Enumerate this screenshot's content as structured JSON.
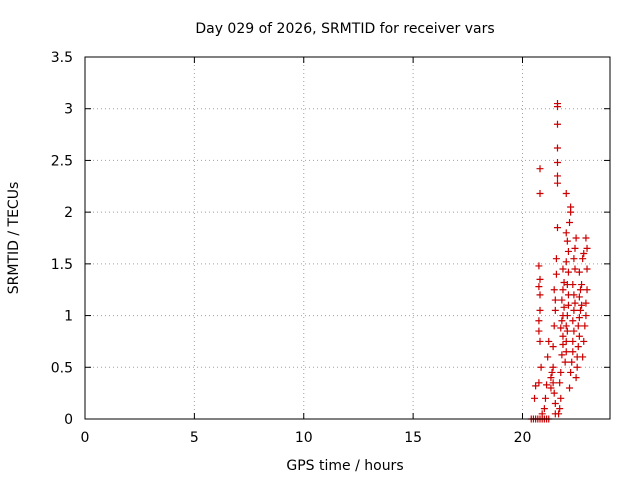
{
  "chart_data": {
    "type": "scatter",
    "title": "Day 029 of 2026, SRMTID for receiver vars",
    "xlabel": "GPS time / hours",
    "ylabel": "SRMTID / TECUs",
    "xlim": [
      0,
      24
    ],
    "ylim": [
      0,
      3.5
    ],
    "grid": true,
    "xticks": [
      0,
      5,
      10,
      15,
      20
    ],
    "xtick_labels": [
      "0",
      "5",
      "10",
      "15",
      "20"
    ],
    "yticks": [
      0,
      0.5,
      1,
      1.5,
      2,
      2.5,
      3,
      3.5
    ],
    "ytick_labels": [
      "0",
      "0.5",
      "1",
      "1.5",
      "2",
      "2.5",
      "3",
      "3.5"
    ],
    "marker": "plus",
    "series": [
      {
        "name": "SRMTID",
        "color": "#cc0000",
        "points": [
          [
            20.4,
            0.0
          ],
          [
            20.5,
            0.0
          ],
          [
            20.6,
            0.0
          ],
          [
            20.7,
            0.0
          ],
          [
            20.8,
            0.0
          ],
          [
            20.9,
            0.0
          ],
          [
            21.0,
            0.0
          ],
          [
            21.1,
            0.0
          ],
          [
            21.2,
            0.0
          ],
          [
            20.55,
            0.2
          ],
          [
            20.6,
            0.32
          ],
          [
            20.75,
            0.35
          ],
          [
            20.85,
            0.5
          ],
          [
            20.8,
            0.75
          ],
          [
            20.75,
            0.85
          ],
          [
            20.75,
            0.95
          ],
          [
            20.8,
            1.05
          ],
          [
            20.8,
            1.2
          ],
          [
            20.75,
            1.28
          ],
          [
            20.8,
            1.35
          ],
          [
            20.75,
            1.48
          ],
          [
            20.8,
            2.18
          ],
          [
            20.8,
            2.42
          ],
          [
            20.9,
            0.05
          ],
          [
            21.0,
            0.1
          ],
          [
            21.05,
            0.2
          ],
          [
            21.1,
            0.33
          ],
          [
            21.15,
            0.6
          ],
          [
            21.2,
            0.75
          ],
          [
            21.3,
            0.3
          ],
          [
            21.3,
            0.4
          ],
          [
            21.35,
            0.45
          ],
          [
            21.4,
            0.5
          ],
          [
            21.4,
            0.35
          ],
          [
            21.45,
            0.25
          ],
          [
            21.5,
            0.15
          ],
          [
            21.5,
            0.05
          ],
          [
            21.4,
            0.7
          ],
          [
            21.45,
            0.9
          ],
          [
            21.5,
            1.05
          ],
          [
            21.5,
            1.15
          ],
          [
            21.45,
            1.25
          ],
          [
            21.55,
            1.4
          ],
          [
            21.55,
            1.55
          ],
          [
            21.6,
            1.85
          ],
          [
            21.6,
            2.28
          ],
          [
            21.6,
            2.35
          ],
          [
            21.6,
            2.48
          ],
          [
            21.6,
            2.62
          ],
          [
            21.6,
            2.85
          ],
          [
            21.6,
            3.02
          ],
          [
            21.6,
            3.05
          ],
          [
            21.65,
            0.05
          ],
          [
            21.7,
            0.1
          ],
          [
            21.75,
            0.2
          ],
          [
            21.7,
            0.35
          ],
          [
            21.75,
            0.45
          ],
          [
            21.8,
            0.62
          ],
          [
            21.85,
            0.72
          ],
          [
            21.85,
            0.8
          ],
          [
            21.75,
            0.88
          ],
          [
            21.8,
            0.95
          ],
          [
            21.85,
            1.0
          ],
          [
            21.9,
            1.08
          ],
          [
            21.8,
            1.15
          ],
          [
            21.85,
            1.25
          ],
          [
            21.9,
            1.32
          ],
          [
            21.85,
            1.45
          ],
          [
            21.95,
            0.55
          ],
          [
            22.0,
            0.65
          ],
          [
            22.0,
            0.75
          ],
          [
            22.05,
            0.85
          ],
          [
            22.0,
            0.9
          ],
          [
            22.05,
            1.0
          ],
          [
            22.1,
            1.1
          ],
          [
            22.1,
            1.2
          ],
          [
            22.05,
            1.3
          ],
          [
            22.1,
            1.42
          ],
          [
            22.0,
            1.52
          ],
          [
            22.1,
            1.62
          ],
          [
            22.05,
            1.72
          ],
          [
            22.0,
            1.8
          ],
          [
            22.15,
            1.9
          ],
          [
            22.2,
            2.0
          ],
          [
            22.2,
            2.05
          ],
          [
            22.0,
            2.18
          ],
          [
            22.15,
            0.3
          ],
          [
            22.2,
            0.45
          ],
          [
            22.25,
            0.55
          ],
          [
            22.3,
            0.65
          ],
          [
            22.3,
            0.75
          ],
          [
            22.35,
            0.85
          ],
          [
            22.3,
            0.95
          ],
          [
            22.35,
            1.05
          ],
          [
            22.4,
            1.12
          ],
          [
            22.35,
            1.2
          ],
          [
            22.3,
            1.3
          ],
          [
            22.4,
            1.45
          ],
          [
            22.35,
            1.55
          ],
          [
            22.4,
            1.65
          ],
          [
            22.45,
            1.75
          ],
          [
            22.45,
            0.4
          ],
          [
            22.5,
            0.5
          ],
          [
            22.5,
            0.6
          ],
          [
            22.55,
            0.7
          ],
          [
            22.6,
            0.8
          ],
          [
            22.55,
            0.9
          ],
          [
            22.6,
            0.98
          ],
          [
            22.65,
            1.05
          ],
          [
            22.7,
            1.1
          ],
          [
            22.6,
            1.18
          ],
          [
            22.65,
            1.25
          ],
          [
            22.7,
            1.3
          ],
          [
            22.6,
            1.42
          ],
          [
            22.75,
            1.55
          ],
          [
            22.8,
            1.6
          ],
          [
            22.75,
            0.6
          ],
          [
            22.8,
            0.75
          ],
          [
            22.85,
            0.9
          ],
          [
            22.9,
            1.0
          ],
          [
            22.9,
            1.12
          ],
          [
            22.95,
            1.25
          ],
          [
            22.95,
            1.45
          ],
          [
            22.95,
            1.65
          ],
          [
            22.9,
            1.75
          ]
        ]
      }
    ]
  }
}
